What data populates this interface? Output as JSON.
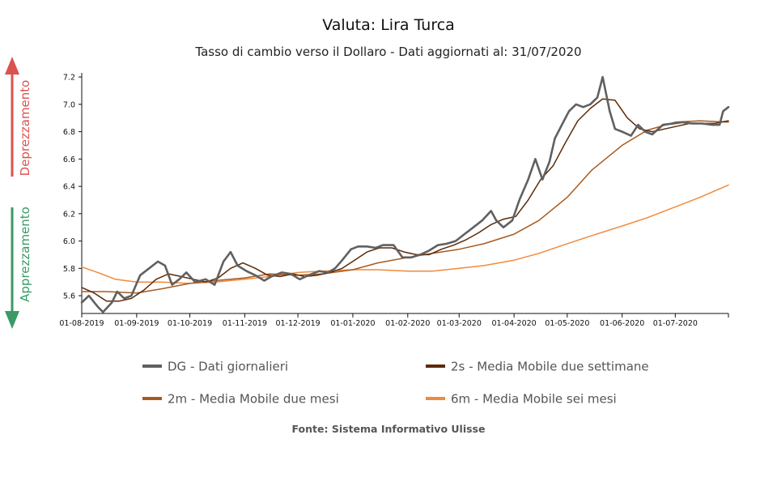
{
  "title": "Valuta: Lira Turca",
  "subtitle": "Tasso di cambio verso il Dollaro - Dati aggiornati al: 31/07/2020",
  "source": "Fonte: Sistema Informativo Ulisse",
  "side_labels": {
    "up": {
      "text": "Deprezzamento",
      "color": "#d9534f"
    },
    "down": {
      "text": "Apprezzamento",
      "color": "#3a9a66"
    }
  },
  "chart_data": {
    "type": "line",
    "x_start_label": "01-08-2019",
    "x_end_label": "31-07-2020",
    "x_ticks": [
      "01-08-2019",
      "01-09-2019",
      "01-10-2019",
      "01-11-2019",
      "01-12-2019",
      "01-01-2020",
      "01-02-2020",
      "01-03-2020",
      "01-04-2020",
      "01-05-2020",
      "01-06-2020",
      "01-07-2020"
    ],
    "y_ticks": [
      5.6,
      5.8,
      6.0,
      6.2,
      6.4,
      6.6,
      6.8,
      7.0,
      7.2
    ],
    "ylim": [
      5.47,
      7.23
    ],
    "series": [
      {
        "key": "dg",
        "name": "DG - Dati giornalieri",
        "color": "#606060",
        "points": [
          [
            "01-08-2019",
            5.55
          ],
          [
            "05-08-2019",
            5.6
          ],
          [
            "10-08-2019",
            5.52
          ],
          [
            "13-08-2019",
            5.48
          ],
          [
            "18-08-2019",
            5.55
          ],
          [
            "21-08-2019",
            5.63
          ],
          [
            "25-08-2019",
            5.58
          ],
          [
            "29-08-2019",
            5.6
          ],
          [
            "03-09-2019",
            5.75
          ],
          [
            "08-09-2019",
            5.8
          ],
          [
            "13-09-2019",
            5.85
          ],
          [
            "17-09-2019",
            5.82
          ],
          [
            "21-09-2019",
            5.68
          ],
          [
            "25-09-2019",
            5.72
          ],
          [
            "29-09-2019",
            5.77
          ],
          [
            "04-10-2019",
            5.7
          ],
          [
            "10-10-2019",
            5.72
          ],
          [
            "15-10-2019",
            5.68
          ],
          [
            "20-10-2019",
            5.85
          ],
          [
            "24-10-2019",
            5.92
          ],
          [
            "28-10-2019",
            5.82
          ],
          [
            "02-11-2019",
            5.78
          ],
          [
            "07-11-2019",
            5.75
          ],
          [
            "12-11-2019",
            5.71
          ],
          [
            "16-11-2019",
            5.74
          ],
          [
            "22-11-2019",
            5.77
          ],
          [
            "27-11-2019",
            5.76
          ],
          [
            "02-12-2019",
            5.72
          ],
          [
            "07-12-2019",
            5.75
          ],
          [
            "13-12-2019",
            5.78
          ],
          [
            "18-12-2019",
            5.77
          ],
          [
            "22-12-2019",
            5.8
          ],
          [
            "26-12-2019",
            5.86
          ],
          [
            "31-12-2019",
            5.94
          ],
          [
            "04-01-2020",
            5.96
          ],
          [
            "09-01-2020",
            5.96
          ],
          [
            "14-01-2020",
            5.95
          ],
          [
            "18-01-2020",
            5.97
          ],
          [
            "24-01-2020",
            5.97
          ],
          [
            "29-01-2020",
            5.88
          ],
          [
            "03-02-2020",
            5.88
          ],
          [
            "08-02-2020",
            5.9
          ],
          [
            "13-02-2020",
            5.93
          ],
          [
            "18-02-2020",
            5.97
          ],
          [
            "23-02-2020",
            5.98
          ],
          [
            "28-02-2020",
            6.0
          ],
          [
            "04-03-2020",
            6.05
          ],
          [
            "09-03-2020",
            6.1
          ],
          [
            "14-03-2020",
            6.15
          ],
          [
            "19-03-2020",
            6.22
          ],
          [
            "22-03-2020",
            6.15
          ],
          [
            "26-03-2020",
            6.1
          ],
          [
            "31-03-2020",
            6.15
          ],
          [
            "04-04-2020",
            6.3
          ],
          [
            "09-04-2020",
            6.45
          ],
          [
            "13-04-2020",
            6.6
          ],
          [
            "17-04-2020",
            6.45
          ],
          [
            "21-04-2020",
            6.58
          ],
          [
            "24-04-2020",
            6.75
          ],
          [
            "28-04-2020",
            6.85
          ],
          [
            "02-05-2020",
            6.95
          ],
          [
            "06-05-2020",
            7.0
          ],
          [
            "10-05-2020",
            6.98
          ],
          [
            "14-05-2020",
            7.0
          ],
          [
            "18-05-2020",
            7.05
          ],
          [
            "21-05-2020",
            7.2
          ],
          [
            "25-05-2020",
            6.95
          ],
          [
            "28-05-2020",
            6.82
          ],
          [
            "01-06-2020",
            6.8
          ],
          [
            "06-06-2020",
            6.77
          ],
          [
            "10-06-2020",
            6.85
          ],
          [
            "14-06-2020",
            6.8
          ],
          [
            "18-06-2020",
            6.78
          ],
          [
            "24-06-2020",
            6.85
          ],
          [
            "30-06-2020",
            6.86
          ],
          [
            "05-07-2020",
            6.87
          ],
          [
            "10-07-2020",
            6.86
          ],
          [
            "16-07-2020",
            6.86
          ],
          [
            "22-07-2020",
            6.85
          ],
          [
            "26-07-2020",
            6.85
          ],
          [
            "28-07-2020",
            6.95
          ],
          [
            "31-07-2020",
            6.98
          ]
        ]
      },
      {
        "key": "s2",
        "name": "2s - Media Mobile due settimane",
        "color": "#5c2a08",
        "points": [
          [
            "01-08-2019",
            5.66
          ],
          [
            "08-08-2019",
            5.62
          ],
          [
            "15-08-2019",
            5.56
          ],
          [
            "22-08-2019",
            5.56
          ],
          [
            "29-08-2019",
            5.58
          ],
          [
            "05-09-2019",
            5.64
          ],
          [
            "12-09-2019",
            5.72
          ],
          [
            "19-09-2019",
            5.76
          ],
          [
            "26-09-2019",
            5.74
          ],
          [
            "03-10-2019",
            5.72
          ],
          [
            "10-10-2019",
            5.7
          ],
          [
            "17-10-2019",
            5.73
          ],
          [
            "24-10-2019",
            5.8
          ],
          [
            "31-10-2019",
            5.84
          ],
          [
            "07-11-2019",
            5.8
          ],
          [
            "14-11-2019",
            5.75
          ],
          [
            "21-11-2019",
            5.74
          ],
          [
            "28-11-2019",
            5.76
          ],
          [
            "05-12-2019",
            5.74
          ],
          [
            "12-12-2019",
            5.75
          ],
          [
            "19-12-2019",
            5.77
          ],
          [
            "26-12-2019",
            5.8
          ],
          [
            "02-01-2020",
            5.86
          ],
          [
            "09-01-2020",
            5.92
          ],
          [
            "16-01-2020",
            5.95
          ],
          [
            "23-01-2020",
            5.95
          ],
          [
            "30-01-2020",
            5.92
          ],
          [
            "06-02-2020",
            5.9
          ],
          [
            "13-02-2020",
            5.9
          ],
          [
            "20-02-2020",
            5.94
          ],
          [
            "27-02-2020",
            5.97
          ],
          [
            "05-03-2020",
            6.01
          ],
          [
            "12-03-2020",
            6.06
          ],
          [
            "19-03-2020",
            6.12
          ],
          [
            "26-03-2020",
            6.16
          ],
          [
            "02-04-2020",
            6.18
          ],
          [
            "09-04-2020",
            6.3
          ],
          [
            "16-04-2020",
            6.45
          ],
          [
            "23-04-2020",
            6.55
          ],
          [
            "30-04-2020",
            6.72
          ],
          [
            "07-05-2020",
            6.88
          ],
          [
            "14-05-2020",
            6.97
          ],
          [
            "21-05-2020",
            7.04
          ],
          [
            "28-05-2020",
            7.03
          ],
          [
            "04-06-2020",
            6.9
          ],
          [
            "11-06-2020",
            6.82
          ],
          [
            "18-06-2020",
            6.8
          ],
          [
            "25-06-2020",
            6.82
          ],
          [
            "02-07-2020",
            6.84
          ],
          [
            "09-07-2020",
            6.86
          ],
          [
            "16-07-2020",
            6.86
          ],
          [
            "23-07-2020",
            6.86
          ],
          [
            "31-07-2020",
            6.88
          ]
        ]
      },
      {
        "key": "m2",
        "name": "2m - Media Mobile due mesi",
        "color": "#a85a1e",
        "points": [
          [
            "01-08-2019",
            5.63
          ],
          [
            "15-08-2019",
            5.63
          ],
          [
            "01-09-2019",
            5.62
          ],
          [
            "15-09-2019",
            5.65
          ],
          [
            "01-10-2019",
            5.69
          ],
          [
            "15-10-2019",
            5.71
          ],
          [
            "01-11-2019",
            5.73
          ],
          [
            "15-11-2019",
            5.76
          ],
          [
            "01-12-2019",
            5.75
          ],
          [
            "15-12-2019",
            5.76
          ],
          [
            "01-01-2020",
            5.79
          ],
          [
            "15-01-2020",
            5.84
          ],
          [
            "01-02-2020",
            5.88
          ],
          [
            "15-02-2020",
            5.91
          ],
          [
            "01-03-2020",
            5.94
          ],
          [
            "15-03-2020",
            5.98
          ],
          [
            "01-04-2020",
            6.05
          ],
          [
            "15-04-2020",
            6.15
          ],
          [
            "01-05-2020",
            6.32
          ],
          [
            "15-05-2020",
            6.52
          ],
          [
            "01-06-2020",
            6.7
          ],
          [
            "15-06-2020",
            6.81
          ],
          [
            "01-07-2020",
            6.87
          ],
          [
            "15-07-2020",
            6.88
          ],
          [
            "31-07-2020",
            6.87
          ]
        ]
      },
      {
        "key": "m6",
        "name": "6m - Media Mobile sei mesi",
        "color": "#f08a3c",
        "points": [
          [
            "01-08-2019",
            5.81
          ],
          [
            "10-08-2019",
            5.77
          ],
          [
            "20-08-2019",
            5.72
          ],
          [
            "01-09-2019",
            5.7
          ],
          [
            "15-09-2019",
            5.7
          ],
          [
            "01-10-2019",
            5.69
          ],
          [
            "15-10-2019",
            5.7
          ],
          [
            "01-11-2019",
            5.72
          ],
          [
            "15-11-2019",
            5.74
          ],
          [
            "01-12-2019",
            5.77
          ],
          [
            "15-12-2019",
            5.78
          ],
          [
            "01-01-2020",
            5.79
          ],
          [
            "15-01-2020",
            5.79
          ],
          [
            "01-02-2020",
            5.78
          ],
          [
            "15-02-2020",
            5.78
          ],
          [
            "01-03-2020",
            5.8
          ],
          [
            "15-03-2020",
            5.82
          ],
          [
            "01-04-2020",
            5.86
          ],
          [
            "15-04-2020",
            5.91
          ],
          [
            "01-05-2020",
            5.98
          ],
          [
            "15-05-2020",
            6.04
          ],
          [
            "01-06-2020",
            6.11
          ],
          [
            "15-06-2020",
            6.17
          ],
          [
            "01-07-2020",
            6.25
          ],
          [
            "15-07-2020",
            6.32
          ],
          [
            "31-07-2020",
            6.41
          ]
        ]
      }
    ],
    "legend_position": "bottom"
  }
}
